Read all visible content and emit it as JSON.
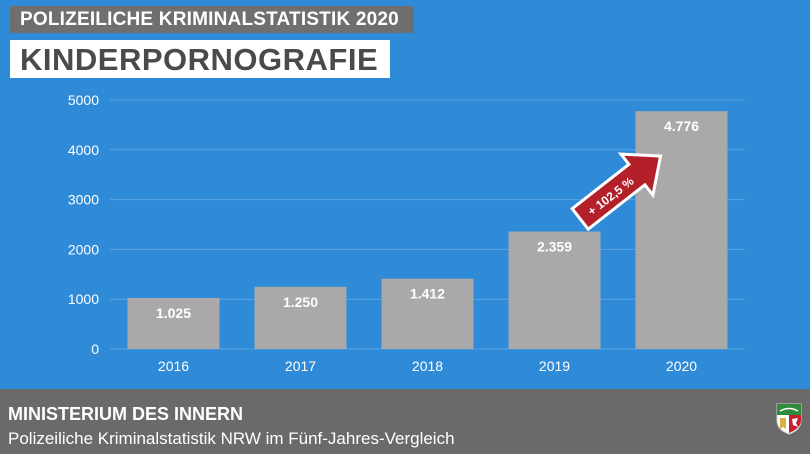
{
  "header": {
    "supertitle": "POLIZEILICHE KRIMINALSTATISTIK 2020",
    "title": "KINDERPORNOGRAFIE"
  },
  "chart_data": {
    "type": "bar",
    "categories": [
      "2016",
      "2017",
      "2018",
      "2019",
      "2020"
    ],
    "values": [
      1025,
      1250,
      1412,
      2359,
      4776
    ],
    "value_labels": [
      "1.025",
      "1.250",
      "1.412",
      "2.359",
      "4.776"
    ],
    "ylim": [
      0,
      5000
    ],
    "yticks": [
      0,
      1000,
      2000,
      3000,
      4000,
      5000
    ],
    "grid": true,
    "annotation": "+ 102,5 %",
    "colors": {
      "bar": "#a9a9a9",
      "background": "#2f8ad8",
      "arrow": "#b3202a",
      "grid": "#5aa4e2"
    }
  },
  "footer": {
    "title": "MINISTERIUM DES INNERN",
    "subtitle": "Polizeiliche Kriminalstatistik NRW im Fünf-Jahres-Vergleich",
    "crest": "nrw-coat-of-arms"
  }
}
